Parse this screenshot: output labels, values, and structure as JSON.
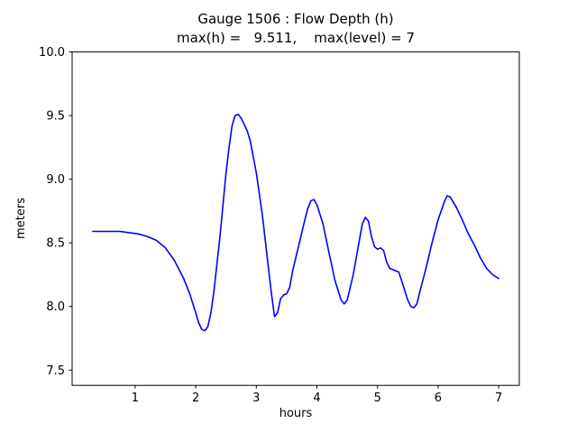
{
  "figure": {
    "background": "#ffffff"
  },
  "chart_data": {
    "type": "line",
    "title": "Gauge 1506 : Flow Depth (h)",
    "subtitle": "max(h) =   9.511,    max(level) = 7",
    "xlabel": "hours",
    "ylabel": "meters",
    "max_h": 9.511,
    "max_level": 7,
    "xlim": [
      -0.04,
      7.34
    ],
    "ylim": [
      7.38,
      10.0
    ],
    "xticks": [
      1,
      2,
      3,
      4,
      5,
      6,
      7
    ],
    "yticks": [
      7.5,
      8.0,
      8.5,
      9.0,
      9.5,
      10.0
    ],
    "grid": false,
    "legend": "none",
    "line_color": "#0000ff",
    "axis_color": "#000000",
    "x": [
      0.3,
      0.45,
      0.6,
      0.75,
      0.9,
      1.05,
      1.2,
      1.35,
      1.5,
      1.65,
      1.8,
      1.9,
      2.0,
      2.05,
      2.1,
      2.15,
      2.2,
      2.25,
      2.3,
      2.4,
      2.5,
      2.55,
      2.6,
      2.65,
      2.7,
      2.75,
      2.8,
      2.85,
      2.9,
      3.0,
      3.1,
      3.2,
      3.25,
      3.3,
      3.35,
      3.4,
      3.45,
      3.5,
      3.55,
      3.6,
      3.7,
      3.8,
      3.85,
      3.9,
      3.95,
      4.0,
      4.1,
      4.2,
      4.3,
      4.4,
      4.45,
      4.5,
      4.6,
      4.7,
      4.75,
      4.8,
      4.85,
      4.9,
      4.95,
      5.0,
      5.05,
      5.1,
      5.15,
      5.2,
      5.3,
      5.35,
      5.4,
      5.5,
      5.55,
      5.6,
      5.65,
      5.7,
      5.8,
      5.9,
      6.0,
      6.1,
      6.15,
      6.2,
      6.3,
      6.4,
      6.5,
      6.6,
      6.7,
      6.8,
      6.9,
      7.0
    ],
    "y": [
      8.59,
      8.59,
      8.59,
      8.59,
      8.58,
      8.57,
      8.55,
      8.52,
      8.46,
      8.36,
      8.22,
      8.1,
      7.95,
      7.87,
      7.82,
      7.81,
      7.84,
      7.95,
      8.12,
      8.55,
      9.05,
      9.25,
      9.42,
      9.5,
      9.51,
      9.48,
      9.43,
      9.38,
      9.3,
      9.05,
      8.72,
      8.3,
      8.1,
      7.92,
      7.95,
      8.06,
      8.09,
      8.1,
      8.15,
      8.28,
      8.48,
      8.68,
      8.77,
      8.83,
      8.84,
      8.8,
      8.65,
      8.42,
      8.2,
      8.05,
      8.02,
      8.05,
      8.25,
      8.52,
      8.65,
      8.7,
      8.67,
      8.55,
      8.47,
      8.45,
      8.46,
      8.44,
      8.35,
      8.3,
      8.28,
      8.27,
      8.2,
      8.05,
      8.0,
      7.99,
      8.02,
      8.12,
      8.3,
      8.5,
      8.68,
      8.82,
      8.87,
      8.86,
      8.78,
      8.68,
      8.57,
      8.48,
      8.38,
      8.3,
      8.25,
      8.22
    ]
  }
}
